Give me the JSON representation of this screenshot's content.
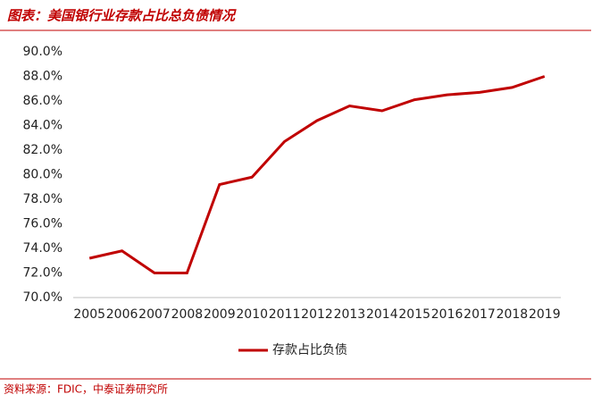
{
  "chart_data": {
    "type": "line",
    "title": "图表：美国银行业存款占比总负债情况",
    "source": "资料来源：FDIC，中泰证券研究所",
    "categories": [
      "2005",
      "2006",
      "2007",
      "2008",
      "2009",
      "2010",
      "2011",
      "2012",
      "2013",
      "2014",
      "2015",
      "2016",
      "2017",
      "2018",
      "2019"
    ],
    "series": [
      {
        "name": "存款占比负债",
        "color": "#c00000",
        "values": [
          73.2,
          73.8,
          72.0,
          72.0,
          79.2,
          79.8,
          82.7,
          84.4,
          85.6,
          85.2,
          86.1,
          86.5,
          86.7,
          87.1,
          88.0
        ]
      }
    ],
    "ylim": [
      70,
      90
    ],
    "yticks": [
      {
        "value": 70,
        "label": "70.0%"
      },
      {
        "value": 72,
        "label": "72.0%"
      },
      {
        "value": 74,
        "label": "74.0%"
      },
      {
        "value": 76,
        "label": "76.0%"
      },
      {
        "value": 78,
        "label": "78.0%"
      },
      {
        "value": 80,
        "label": "80.0%"
      },
      {
        "value": 82,
        "label": "82.0%"
      },
      {
        "value": 84,
        "label": "84.0%"
      },
      {
        "value": 86,
        "label": "86.0%"
      },
      {
        "value": 88,
        "label": "88.0%"
      },
      {
        "value": 90,
        "label": "90.0%"
      }
    ],
    "legend": "bottom",
    "grid": false
  }
}
